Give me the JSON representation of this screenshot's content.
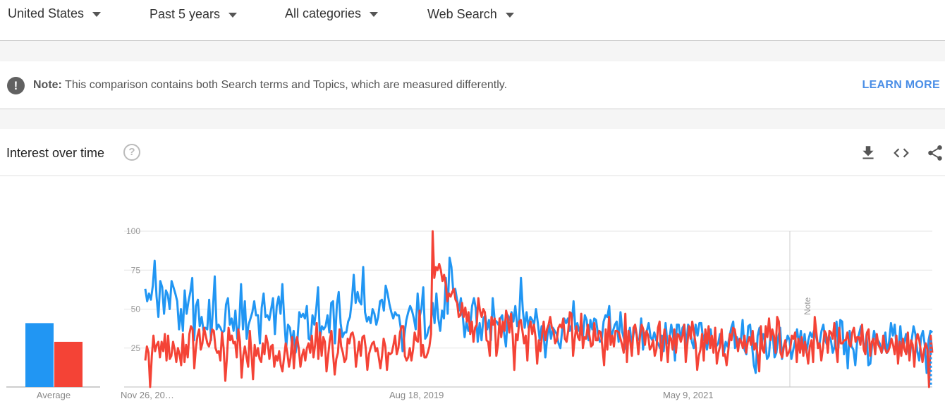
{
  "filters": [
    {
      "label": "United States"
    },
    {
      "label": "Past 5 years"
    },
    {
      "label": "All categories"
    },
    {
      "label": "Web Search"
    }
  ],
  "note": {
    "label": "Note:",
    "text": "This comparison contains both Search terms and Topics, which are measured differently.",
    "link": "LEARN MORE"
  },
  "card": {
    "title": "Interest over time",
    "icons": [
      "download-icon",
      "embed-code-icon",
      "share-icon"
    ]
  },
  "colors": {
    "series_blue": "#2196f3",
    "series_red": "#f44336",
    "link": "#4a8ee6"
  },
  "chart_data": {
    "type": "line",
    "ylim": [
      0,
      100
    ],
    "yticks": [
      25,
      50,
      75,
      100
    ],
    "xticks": [
      "Nov 26, 20…",
      "Aug 18, 2019",
      "May 9, 2021"
    ],
    "annotation": "Note",
    "average_label": "Average",
    "averages": [
      41,
      29
    ],
    "series": [
      {
        "color": "#2196f3",
        "values": [
          63,
          55,
          60,
          56,
          65,
          81,
          58,
          45,
          68,
          64,
          47,
          62,
          59,
          50,
          68,
          64,
          60,
          55,
          37,
          50,
          36,
          62,
          47,
          55,
          61,
          70,
          30,
          52,
          56,
          39,
          45,
          36,
          38,
          37,
          56,
          30,
          50,
          71,
          37,
          40,
          38,
          35,
          36,
          53,
          57,
          40,
          44,
          36,
          49,
          31,
          40,
          66,
          37,
          55,
          31,
          40,
          44,
          48,
          55,
          46,
          46,
          28,
          51,
          60,
          45,
          46,
          43,
          50,
          57,
          34,
          52,
          58,
          47,
          66,
          43,
          25,
          40,
          38,
          28,
          36,
          22,
          30,
          48,
          45,
          47,
          44,
          52,
          31,
          30,
          46,
          40,
          50,
          64,
          31,
          39,
          37,
          39,
          46,
          35,
          54,
          55,
          28,
          53,
          61,
          41,
          32,
          35,
          35,
          42,
          45,
          56,
          72,
          54,
          61,
          55,
          53,
          77,
          48,
          42,
          45,
          41,
          50,
          47,
          40,
          45,
          55,
          56,
          49,
          65,
          60,
          53,
          48,
          44,
          48,
          46,
          46,
          38,
          23,
          34,
          43,
          48,
          52,
          49,
          44,
          37,
          60,
          45,
          50,
          64,
          31,
          33,
          38,
          40,
          54,
          41,
          60,
          44,
          36,
          49,
          44,
          70,
          47,
          83,
          77,
          61,
          63,
          56,
          49,
          57,
          46,
          32,
          42,
          36,
          39,
          52,
          57,
          50,
          29,
          41,
          30,
          44,
          46,
          37,
          43,
          30,
          57,
          43,
          42,
          40,
          44,
          46,
          35,
          26,
          46,
          43,
          48,
          42,
          52,
          39,
          42,
          70,
          49,
          38,
          48,
          38,
          45,
          43,
          40,
          50,
          41,
          30,
          39,
          35,
          19,
          32,
          40,
          31,
          38,
          36,
          34,
          28,
          25,
          37,
          44,
          41,
          44,
          36,
          40,
          55,
          37,
          41,
          36,
          35,
          32,
          46,
          43,
          30,
          43,
          37,
          44,
          43,
          34,
          29,
          30,
          42,
          46,
          45,
          52,
          31,
          36,
          40,
          42,
          29,
          48,
          35,
          30,
          24,
          32,
          38,
          27,
          34,
          38,
          31,
          30,
          44,
          24,
          34,
          36,
          41,
          32,
          30,
          35,
          30,
          28,
          25,
          33,
          23,
          41,
          28,
          30,
          40,
          33,
          17,
          40,
          40,
          30,
          38,
          40,
          26,
          40,
          38,
          29,
          25,
          40,
          33,
          41,
          41,
          30,
          34,
          24,
          32,
          37,
          27,
          30,
          26,
          28,
          34,
          32,
          22,
          29,
          26,
          32,
          38,
          42,
          25,
          32,
          28,
          29,
          43,
          24,
          21,
          39,
          40,
          27,
          14,
          9,
          33,
          38,
          25,
          34,
          30,
          18,
          20,
          35,
          35,
          19,
          22,
          32,
          38,
          18,
          26,
          28,
          33,
          30,
          18,
          24,
          30,
          37,
          27,
          36,
          24,
          34,
          22,
          30,
          35,
          32,
          36,
          33,
          28,
          28,
          36,
          40,
          30,
          27,
          33,
          30,
          22,
          26,
          42,
          25,
          43,
          42,
          21,
          30,
          12,
          36,
          26,
          24,
          14,
          30,
          34,
          39,
          30,
          23,
          34,
          14,
          15,
          28,
          36,
          30,
          30,
          28,
          22,
          26,
          35,
          22,
          29,
          41,
          33,
          40,
          25,
          24,
          39,
          25,
          28,
          34,
          24,
          19,
          30,
          39,
          34,
          23,
          17,
          32,
          36,
          27,
          9,
          30,
          36,
          35
        ]
      },
      {
        "color": "#f44336",
        "values": [
          17,
          26,
          22,
          0,
          20,
          33,
          23,
          27,
          29,
          19,
          29,
          23,
          34,
          17,
          33,
          18,
          20,
          29,
          24,
          16,
          25,
          21,
          14,
          34,
          16,
          27,
          19,
          34,
          39,
          37,
          12,
          25,
          33,
          37,
          24,
          28,
          38,
          33,
          28,
          26,
          30,
          37,
          36,
          25,
          22,
          23,
          17,
          35,
          25,
          4,
          19,
          38,
          30,
          33,
          28,
          29,
          19,
          37,
          29,
          6,
          20,
          26,
          19,
          13,
          36,
          22,
          5,
          27,
          20,
          25,
          18,
          16,
          28,
          21,
          33,
          28,
          18,
          26,
          27,
          13,
          20,
          17,
          23,
          14,
          10,
          19,
          28,
          22,
          13,
          19,
          32,
          12,
          27,
          32,
          25,
          13,
          20,
          24,
          17,
          25,
          28,
          22,
          33,
          19,
          27,
          41,
          18,
          35,
          20,
          32,
          29,
          10,
          20,
          30,
          36,
          21,
          8,
          18,
          22,
          37,
          26,
          22,
          16,
          18,
          31,
          28,
          34,
          35,
          30,
          13,
          22,
          29,
          20,
          32,
          33,
          25,
          11,
          21,
          25,
          28,
          29,
          23,
          25,
          19,
          12,
          20,
          31,
          26,
          11,
          22,
          21,
          22,
          27,
          33,
          21,
          25,
          35,
          39,
          39,
          20,
          17,
          19,
          25,
          17,
          24,
          35,
          30,
          29,
          49,
          20,
          27,
          19,
          19,
          22,
          26,
          34,
          100,
          70,
          77,
          75,
          79,
          75,
          68,
          72,
          66,
          55,
          60,
          58,
          61,
          63,
          56,
          54,
          45,
          46,
          54,
          45,
          51,
          42,
          48,
          34,
          42,
          29,
          38,
          40,
          57,
          49,
          45,
          50,
          48,
          30,
          29,
          20,
          45,
          40,
          44,
          20,
          27,
          44,
          32,
          42,
          36,
          49,
          44,
          35,
          47,
          33,
          11,
          34,
          30,
          42,
          43,
          36,
          28,
          33,
          17,
          38,
          42,
          34,
          40,
          32,
          15,
          30,
          23,
          33,
          42,
          30,
          37,
          40,
          45,
          38,
          36,
          28,
          30,
          38,
          40,
          38,
          44,
          31,
          29,
          36,
          48,
          47,
          20,
          31,
          39,
          32,
          30,
          47,
          25,
          32,
          31,
          40,
          33,
          26,
          27,
          41,
          30,
          30,
          36,
          35,
          25,
          14,
          37,
          24,
          45,
          27,
          33,
          26,
          36,
          36,
          35,
          31,
          27,
          22,
          47,
          16,
          36,
          29,
          20,
          38,
          40,
          33,
          21,
          33,
          40,
          37,
          27,
          36,
          33,
          24,
          26,
          30,
          20,
          24,
          38,
          42,
          17,
          28,
          37,
          29,
          16,
          33,
          31,
          24,
          37,
          22,
          34,
          33,
          29,
          33,
          40,
          16,
          28,
          39,
          31,
          42,
          35,
          28,
          11,
          20,
          24,
          34,
          17,
          37,
          28,
          39,
          25,
          33,
          22,
          38,
          15,
          22,
          26,
          37,
          20,
          21,
          14,
          23,
          34,
          30,
          38,
          37,
          30,
          23,
          31,
          29,
          25,
          33,
          22,
          29,
          32,
          27,
          36,
          24,
          28,
          21,
          10,
          39,
          24,
          22,
          39,
          32,
          44,
          30,
          37,
          33,
          22,
          45,
          42,
          22,
          19,
          26,
          30,
          20,
          22,
          25,
          33,
          31,
          35,
          16,
          31,
          22,
          32,
          20,
          29,
          23,
          15,
          26,
          30,
          16,
          45,
          35,
          25,
          28,
          17,
          25,
          36,
          34,
          22,
          36,
          35,
          31,
          41,
          25,
          16,
          38,
          28,
          28,
          30,
          30,
          35,
          28,
          26,
          35,
          38,
          29,
          32,
          32,
          27,
          40,
          24,
          21,
          35,
          37,
          20,
          29,
          31,
          21,
          34,
          27,
          25,
          22,
          33,
          25,
          22,
          23,
          26,
          31,
          27,
          21,
          33,
          15,
          29,
          20,
          31,
          24,
          21,
          35,
          17,
          30,
          27,
          13,
          29,
          34,
          30,
          23,
          16,
          24,
          28,
          24,
          0,
          33,
          22
        ]
      }
    ]
  }
}
